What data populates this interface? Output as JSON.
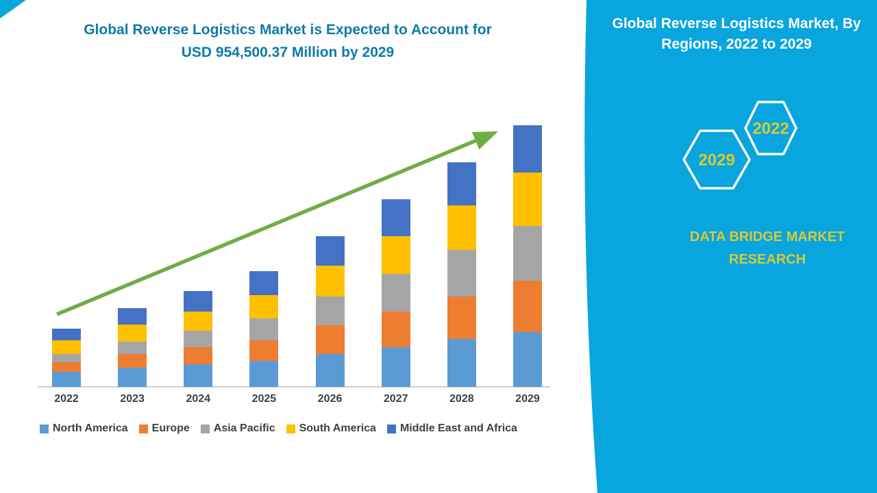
{
  "page": {
    "headline_line1": "Global Reverse Logistics Market is Expected to Account for",
    "headline_line2": "USD 954,500.37 Million by 2029"
  },
  "side_panel": {
    "title": "Global Reverse Logistics Market, By Regions, 2022 to 2029",
    "hexagon_back_label": "2022",
    "hexagon_front_label": "2029",
    "brand_line1": "DATA BRIDGE MARKET",
    "brand_line2": "RESEARCH"
  },
  "colors": {
    "panel_blue": "#09a5de",
    "headline_teal": "#0e7ba6",
    "accent_yellow": "#d8ca35",
    "arrow_green": "#70ad47",
    "axis_text": "#3f3f3f"
  },
  "chart_data": {
    "type": "bar",
    "stacked": true,
    "title": "Global Reverse Logistics Market, By Regions, 2022 to 2029",
    "unit": "USD Million",
    "categories": [
      "2022",
      "2023",
      "2024",
      "2025",
      "2026",
      "2027",
      "2028",
      "2029"
    ],
    "series": [
      {
        "name": "North America",
        "color": "#5B9BD5",
        "values": [
          55000,
          70000,
          82000,
          95000,
          120000,
          145000,
          175000,
          200000
        ]
      },
      {
        "name": "Europe",
        "color": "#ED7D31",
        "values": [
          35000,
          50000,
          62000,
          75000,
          105000,
          130000,
          155000,
          187000
        ]
      },
      {
        "name": "Asia Pacific",
        "color": "#A5A5A5",
        "values": [
          30000,
          45000,
          62000,
          80000,
          105000,
          137000,
          170000,
          200000
        ]
      },
      {
        "name": "South America",
        "color": "#FFC000",
        "values": [
          50000,
          62000,
          70000,
          85000,
          112000,
          137000,
          162000,
          195000
        ]
      },
      {
        "name": "Middle East and Africa",
        "color": "#4472C4",
        "values": [
          42000,
          60000,
          75000,
          87000,
          107000,
          135000,
          157000,
          172500
        ]
      }
    ],
    "totals": [
      212000,
      287000,
      351000,
      422000,
      549000,
      684000,
      819000,
      954500
    ],
    "values_note": "Segment values estimated from bar heights; no numeric axis shown. 2029 total matches headline USD 954,500.37 Million.",
    "xlabel": "",
    "ylabel": "",
    "ylim": [
      0,
      954500
    ],
    "grid": false,
    "legend_position": "bottom",
    "trend_arrow": true
  }
}
